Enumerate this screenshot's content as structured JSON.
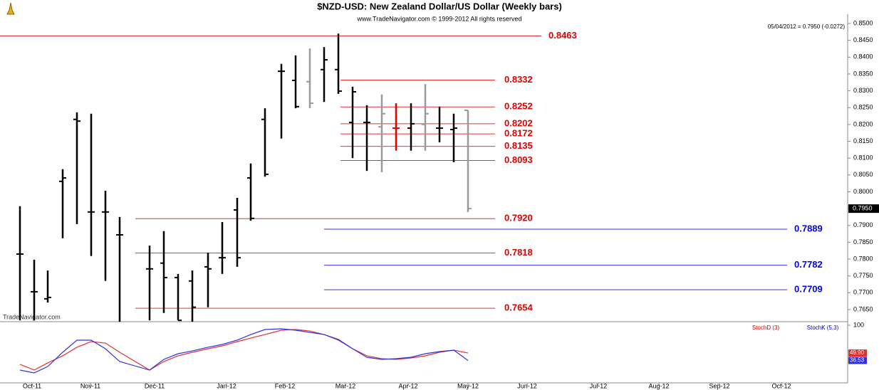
{
  "chart_data": {
    "type": "ohlc",
    "title": "$NZD-USD:  New Zealand Dollar/US Dollar  (Weekly bars)",
    "subtitle": "www.TradeNavigator.com © 1999-2012 All rights reserved",
    "quote": "05/04/2012 = 0.7950 (-0.0272)",
    "watermark": "TradeNavigator.com",
    "x_labels": [
      "Oct-11",
      "Nov-11",
      "Dec-11",
      "Jan-12",
      "Feb-12",
      "Mar-12",
      "Apr-12",
      "May-12",
      "Jun-12",
      "Jul-12",
      "Aug-12",
      "Sep-12",
      "Oct-12"
    ],
    "open": [
      0.7815,
      0.7703,
      0.7682,
      0.8031,
      0.8215,
      0.794,
      0.794,
      0.7872,
      0.7771,
      0.7788,
      0.7745,
      0.7735,
      0.7777,
      0.7804,
      0.7946,
      0.8041,
      0.8215,
      0.8358,
      0.8331,
      0.8327,
      0.8363,
      0.8363,
      0.8206,
      0.8206,
      0.8193,
      0.8189,
      0.8189,
      0.82,
      0.8189,
      0.8185,
      0.8242
    ],
    "high": [
      0.7957,
      0.7798,
      0.7766,
      0.8067,
      0.8236,
      0.8232,
      0.8003,
      0.7925,
      0.784,
      0.7883,
      0.7756,
      0.7766,
      0.7819,
      0.791,
      0.7982,
      0.8084,
      0.8248,
      0.838,
      0.8405,
      0.8426,
      0.843,
      0.847,
      0.8312,
      0.8257,
      0.8289,
      0.8263,
      0.8263,
      0.832,
      0.8253,
      0.8232,
      0.8242
    ],
    "low": [
      0.7618,
      0.7618,
      0.7671,
      0.7862,
      0.7904,
      0.7809,
      0.7735,
      0.7614,
      0.7618,
      0.764,
      0.7618,
      0.7614,
      0.7657,
      0.7756,
      0.7777,
      0.7914,
      0.8045,
      0.8158,
      0.8248,
      0.8248,
      0.8267,
      0.8291,
      0.81,
      0.8062,
      0.8058,
      0.8122,
      0.8122,
      0.8122,
      0.8147,
      0.8088,
      0.794
    ],
    "close": [
      0.7815,
      0.7703,
      0.7686,
      0.8041,
      0.821,
      0.794,
      0.794,
      0.7872,
      0.7771,
      0.7745,
      0.7618,
      0.7657,
      0.7771,
      0.7804,
      0.7804,
      0.7921,
      0.8052,
      0.8358,
      0.8253,
      0.8263,
      0.8392,
      0.8299,
      0.8297,
      0.8206,
      0.8232,
      0.8189,
      0.8202,
      0.8232,
      0.8189,
      0.8189,
      0.795
    ],
    "colors": [
      "#000",
      "#000",
      "#000",
      "#000",
      "#000",
      "#000",
      "#000",
      "#000",
      "#000",
      "#000",
      "#000",
      "#000",
      "#000",
      "#000",
      "#000",
      "#000",
      "#000",
      "#000",
      "#000",
      "#999",
      "#000",
      "#000",
      "#000",
      "#000",
      "#999",
      "#e00000",
      "#000",
      "#999",
      "#000",
      "#000",
      "#999"
    ],
    "last_close_label": "0.7950",
    "ylim": [
      0.7615,
      0.852
    ],
    "yticks": [
      {
        "value": 0.85,
        "label": "0.8500"
      },
      {
        "value": 0.845,
        "label": "0.8450"
      },
      {
        "value": 0.84,
        "label": "0.8400"
      },
      {
        "value": 0.835,
        "label": "0.8350"
      },
      {
        "value": 0.83,
        "label": "0.8300"
      },
      {
        "value": 0.825,
        "label": "0.8250"
      },
      {
        "value": 0.82,
        "label": "0.8200"
      },
      {
        "value": 0.815,
        "label": "0.8150"
      },
      {
        "value": 0.81,
        "label": "0.8100"
      },
      {
        "value": 0.805,
        "label": "0.8050"
      },
      {
        "value": 0.8,
        "label": "0.8000"
      },
      {
        "value": 0.795,
        "label": "0.7950"
      },
      {
        "value": 0.79,
        "label": "0.7900"
      },
      {
        "value": 0.785,
        "label": "0.7850"
      },
      {
        "value": 0.78,
        "label": "0.7800"
      },
      {
        "value": 0.775,
        "label": "0.7750"
      },
      {
        "value": 0.77,
        "label": "0.7700"
      },
      {
        "value": 0.765,
        "label": "0.7650"
      }
    ],
    "levels": [
      {
        "value": 0.8463,
        "label": "0.8463",
        "color": "#e00000"
      },
      {
        "value": 0.8332,
        "label": "0.8332",
        "color": "#e00000"
      },
      {
        "value": 0.8252,
        "label": "0.8252",
        "color": "#e00000"
      },
      {
        "value": 0.8202,
        "label": "0.8202",
        "color": "#e00000"
      },
      {
        "value": 0.8172,
        "label": "0.8172",
        "color": "#e00000"
      },
      {
        "value": 0.8135,
        "label": "0.8135",
        "color": "#e00000"
      },
      {
        "value": 0.8093,
        "label": "0.8093",
        "color": "#e00000"
      },
      {
        "value": 0.792,
        "label": "0.7920",
        "color": "#e00000"
      },
      {
        "value": 0.7818,
        "label": "0.7818",
        "color": "#e00000"
      },
      {
        "value": 0.7654,
        "label": "0.7654",
        "color": "#e00000"
      },
      {
        "value": 0.7889,
        "label": "0.7889",
        "color": "#0000ee"
      },
      {
        "value": 0.7782,
        "label": "0.7782",
        "color": "#0000ee"
      },
      {
        "value": 0.7709,
        "label": "0.7709",
        "color": "#0000ee"
      }
    ],
    "stoch": {
      "ylim": [
        0,
        100
      ],
      "yticks": [
        100
      ],
      "series": [
        {
          "name": "StochD (3)",
          "color": "#e03030",
          "values": [
            29.5,
            19.2,
            32.1,
            44.9,
            60.3,
            70.5,
            67.9,
            51.3,
            19.2,
            34.6,
            44.9,
            51.3,
            57.7,
            62.8,
            70.5,
            76.9,
            83.3,
            91.0,
            92.3,
            89.7,
            83.3,
            73.1,
            57.7,
            44.9,
            39.7,
            38.5,
            41.0,
            44.9,
            51.3,
            55.1,
            49.9
          ],
          "last_label": "49.90"
        },
        {
          "name": "StochK (5,3)",
          "color": "#3030e0",
          "values": [
            19.2,
            14.1,
            25.6,
            51.3,
            73.1,
            73.1,
            57.7,
            34.6,
            19.2,
            38.5,
            48.7,
            53.8,
            60.3,
            65.4,
            73.1,
            83.3,
            92.3,
            93.6,
            91.0,
            87.2,
            83.3,
            74.4,
            57.7,
            42.3,
            38.5,
            39.7,
            42.3,
            48.7,
            52.6,
            55.1,
            36.53
          ],
          "last_label": "36.53"
        }
      ]
    }
  }
}
